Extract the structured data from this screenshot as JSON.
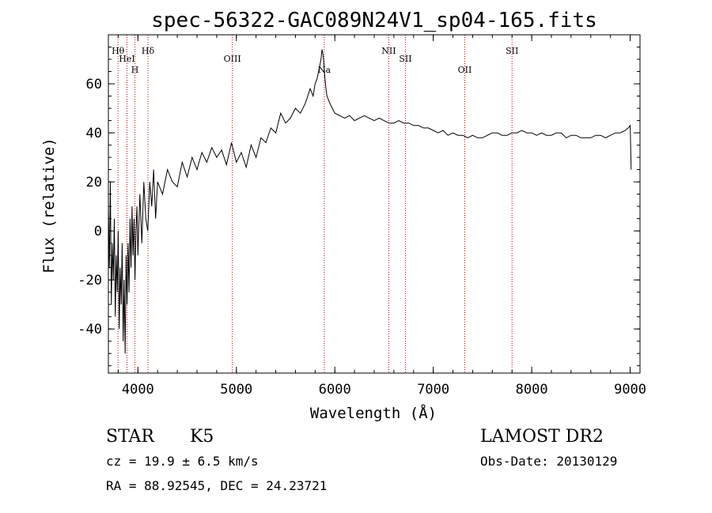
{
  "title": "spec-56322-GAC089N24V1_sp04-165.fits",
  "chart_data": {
    "type": "line",
    "xlabel": "Wavelength (Å)",
    "ylabel": "Flux (relative)",
    "xlim": [
      3700,
      9100
    ],
    "ylim": [
      -58,
      80
    ],
    "xticks": [
      4000,
      5000,
      6000,
      7000,
      8000,
      9000
    ],
    "yticks": [
      -40,
      -20,
      0,
      20,
      40,
      60
    ],
    "series": [
      {
        "x": [
          3700,
          3710,
          3720,
          3730,
          3740,
          3750,
          3760,
          3770,
          3780,
          3790,
          3800,
          3810,
          3820,
          3830,
          3840,
          3850,
          3860,
          3870,
          3880,
          3890,
          3900,
          3910,
          3920,
          3930,
          3940,
          3950,
          3960,
          3970,
          3980,
          3990,
          4000,
          4020,
          4040,
          4060,
          4080,
          4100,
          4120,
          4140,
          4160,
          4180,
          4200,
          4250,
          4300,
          4350,
          4400,
          4450,
          4500,
          4550,
          4600,
          4650,
          4700,
          4750,
          4800,
          4850,
          4900,
          4950,
          5000,
          5050,
          5100,
          5150,
          5200,
          5250,
          5300,
          5350,
          5400,
          5450,
          5500,
          5550,
          5600,
          5650,
          5700,
          5750,
          5780,
          5800,
          5820,
          5840,
          5860,
          5870,
          5880,
          5890,
          5900,
          5910,
          5920,
          5950,
          6000,
          6050,
          6100,
          6150,
          6200,
          6250,
          6300,
          6350,
          6400,
          6450,
          6500,
          6550,
          6600,
          6650,
          6700,
          6750,
          6800,
          6850,
          6900,
          6950,
          7000,
          7050,
          7100,
          7150,
          7200,
          7250,
          7300,
          7350,
          7400,
          7450,
          7500,
          7550,
          7600,
          7650,
          7700,
          7750,
          7800,
          7850,
          7900,
          7950,
          8000,
          8050,
          8100,
          8150,
          8200,
          8250,
          8300,
          8350,
          8400,
          8450,
          8500,
          8550,
          8600,
          8650,
          8700,
          8750,
          8800,
          8850,
          8900,
          8950,
          8980,
          9000,
          9010
        ],
        "y": [
          10,
          -15,
          20,
          -30,
          -5,
          -20,
          5,
          -35,
          -10,
          -25,
          0,
          -40,
          -15,
          -30,
          -5,
          -45,
          -20,
          -50,
          -10,
          -30,
          -5,
          -25,
          5,
          -15,
          10,
          -10,
          5,
          -20,
          0,
          10,
          -10,
          15,
          -5,
          20,
          5,
          0,
          20,
          10,
          25,
          5,
          20,
          15,
          25,
          20,
          18,
          28,
          22,
          30,
          25,
          32,
          28,
          34,
          30,
          33,
          27,
          36,
          28,
          32,
          26,
          35,
          30,
          38,
          36,
          42,
          40,
          48,
          44,
          46,
          50,
          48,
          52,
          58,
          55,
          60,
          62,
          66,
          70,
          74,
          72,
          68,
          62,
          58,
          55,
          52,
          48,
          47,
          46,
          47,
          45,
          46,
          47,
          46,
          45,
          46,
          45,
          44,
          44,
          45,
          44,
          44,
          43,
          43,
          42,
          42,
          41,
          40,
          41,
          39,
          40,
          39,
          39,
          38,
          39,
          38,
          38,
          39,
          40,
          40,
          39,
          39,
          40,
          40,
          41,
          40,
          40,
          39,
          40,
          39,
          39,
          40,
          40,
          38,
          39,
          39,
          38,
          38,
          38,
          39,
          39,
          38,
          39,
          40,
          40,
          41,
          42,
          43,
          25
        ]
      }
    ],
    "lines": [
      {
        "label": "Hθ",
        "wave": 3798
      },
      {
        "label": "HeI",
        "wave": 3889
      },
      {
        "label": "H",
        "wave": 3970
      },
      {
        "label": "Hδ",
        "wave": 4102
      },
      {
        "label": "OIII",
        "wave": 4959
      },
      {
        "label": "Na",
        "wave": 5893
      },
      {
        "label": "NII",
        "wave": 6548
      },
      {
        "label": "SII",
        "wave": 6717
      },
      {
        "label": "OII",
        "wave": 7320
      },
      {
        "label": "SII",
        "wave": 7800
      }
    ]
  },
  "info": {
    "object_class": "STAR",
    "subclass": "K5",
    "cz": "cz = 19.9 ± 6.5 km/s",
    "radec": "RA =  88.92545, DEC =  24.23721",
    "survey": "LAMOST DR2",
    "obs_date": "Obs-Date: 20130129"
  }
}
